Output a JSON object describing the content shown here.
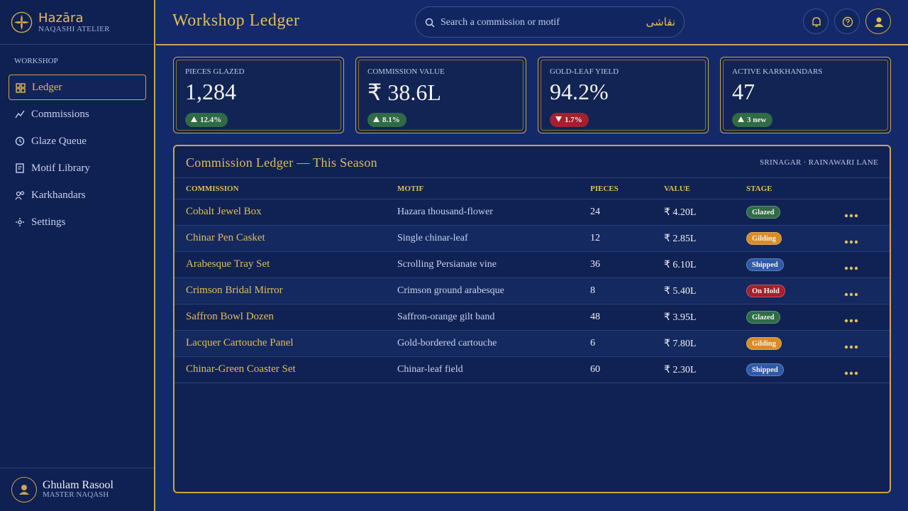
{
  "brand": {
    "name": "Hazāra",
    "subtitle": "NAQASHI ATELIER"
  },
  "nav": {
    "section": "WORKSHOP",
    "active": 0,
    "items": [
      "Ledger",
      "Commissions",
      "Glaze Queue",
      "Motif Library",
      "Karkhandars",
      "Settings"
    ]
  },
  "user": {
    "name": "Ghulam Rasool",
    "role": "MASTER NAQASH"
  },
  "header": {
    "title": "Workshop Ledger",
    "search_placeholder": "Search a commission or motif",
    "search_script": "نقاشی"
  },
  "stats": [
    {
      "label": "PIECES GLAZED",
      "value": "1,284",
      "delta": "12.4%",
      "trend": "up"
    },
    {
      "label": "COMMISSION VALUE",
      "value": "₹ 38.6L",
      "delta": "8.1%",
      "trend": "up"
    },
    {
      "label": "GOLD-LEAF YIELD",
      "value": "94.2%",
      "delta": "1.7%",
      "trend": "down"
    },
    {
      "label": "ACTIVE KARKHANDARS",
      "value": "47",
      "delta": "3 new",
      "trend": "up"
    }
  ],
  "table": {
    "title": "Commission Ledger — This Season",
    "location": "SRINAGAR · RAINAWARI LANE",
    "columns": [
      "COMMISSION",
      "MOTIF",
      "PIECES",
      "VALUE",
      "STAGE"
    ],
    "rows": [
      [
        "Cobalt Jewel Box",
        "Hazara thousand-flower",
        24,
        "₹ 4.20L",
        {
          "label": "Glazed",
          "color": "#2f6b47"
        }
      ],
      [
        "Chinar Pen Casket",
        "Single chinar-leaf",
        12,
        "₹ 2.85L",
        {
          "label": "Gilding",
          "color": "#d98b26"
        }
      ],
      [
        "Arabesque Tray Set",
        "Scrolling Persianate vine",
        36,
        "₹ 6.10L",
        {
          "label": "Shipped",
          "color": "#2e5aa8"
        }
      ],
      [
        "Crimson Bridal Mirror",
        "Crimson ground arabesque",
        8,
        "₹ 5.40L",
        {
          "label": "On Hold",
          "color": "#a3202e"
        }
      ],
      [
        "Saffron Bowl Dozen",
        "Saffron-orange gilt band",
        48,
        "₹ 3.95L",
        {
          "label": "Glazed",
          "color": "#2f6b47"
        }
      ],
      [
        "Lacquer Cartouche Panel",
        "Gold-bordered cartouche",
        6,
        "₹ 7.80L",
        {
          "label": "Gilding",
          "color": "#d98b26"
        }
      ],
      [
        "Chinar-Green Coaster Set",
        "Chinar-leaf field",
        60,
        "₹ 2.30L",
        {
          "label": "Shipped",
          "color": "#2e5aa8"
        }
      ]
    ]
  }
}
